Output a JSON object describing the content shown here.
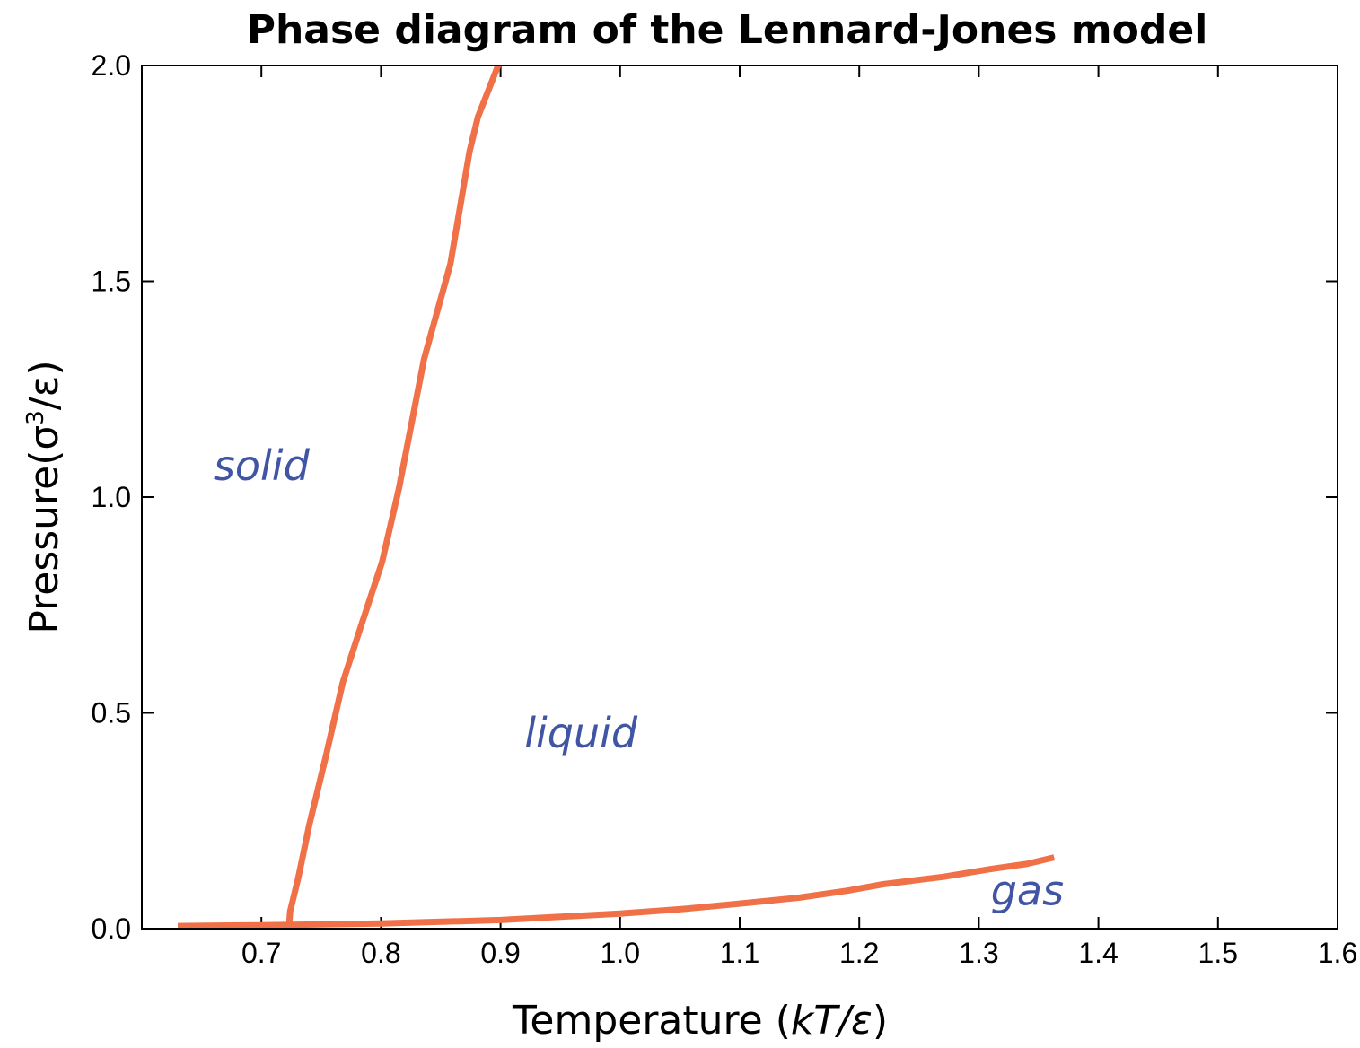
{
  "colors": {
    "line": "#f07048",
    "region_text": "#4055a3",
    "axis": "#000000"
  },
  "chart_data": {
    "type": "line",
    "title": "Phase diagram of the Lennard-Jones model",
    "xlabel_parts": [
      "Temperature (",
      "kT/ε",
      ")"
    ],
    "ylabel_parts": [
      "Pressure(σ",
      "3",
      "/ε)"
    ],
    "xlim": [
      0.6,
      1.6
    ],
    "ylim": [
      0.0,
      2.0
    ],
    "xticks": [
      0.7,
      0.8,
      0.9,
      1.0,
      1.1,
      1.2,
      1.3,
      1.4,
      1.5,
      1.6
    ],
    "xtick_labels": [
      "0.7",
      "0.8",
      "0.9",
      "1.0",
      "1.1",
      "1.2",
      "1.3",
      "1.4",
      "1.5",
      "1.6"
    ],
    "yticks": [
      0.0,
      0.5,
      1.0,
      1.5,
      2.0
    ],
    "ytick_labels": [
      "0.0",
      "0.5",
      "1.0",
      "1.5",
      "2.0"
    ],
    "grid": false,
    "series": [
      {
        "x": [
          0.723,
          0.724,
          0.731,
          0.74,
          0.754,
          0.768,
          0.782,
          0.801,
          0.815,
          0.836,
          0.858,
          0.874,
          0.881,
          0.898
        ],
        "y": [
          0.0,
          0.04,
          0.12,
          0.24,
          0.4,
          0.57,
          0.69,
          0.85,
          1.02,
          1.32,
          1.54,
          1.8,
          1.88,
          2.0
        ]
      },
      {
        "x": [
          0.63,
          0.7,
          0.8,
          0.9,
          1.0,
          1.05,
          1.1,
          1.15,
          1.19,
          1.22,
          1.27,
          1.31,
          1.34,
          1.363
        ],
        "y": [
          0.006,
          0.008,
          0.012,
          0.02,
          0.035,
          0.045,
          0.058,
          0.072,
          0.088,
          0.103,
          0.12,
          0.138,
          0.15,
          0.165
        ]
      }
    ],
    "annotations": [
      {
        "text": "solid",
        "x": 0.66,
        "y": 1.04
      },
      {
        "text": "liquid",
        "x": 0.92,
        "y": 0.42
      },
      {
        "text": "gas",
        "x": 1.31,
        "y": 0.055
      }
    ]
  }
}
